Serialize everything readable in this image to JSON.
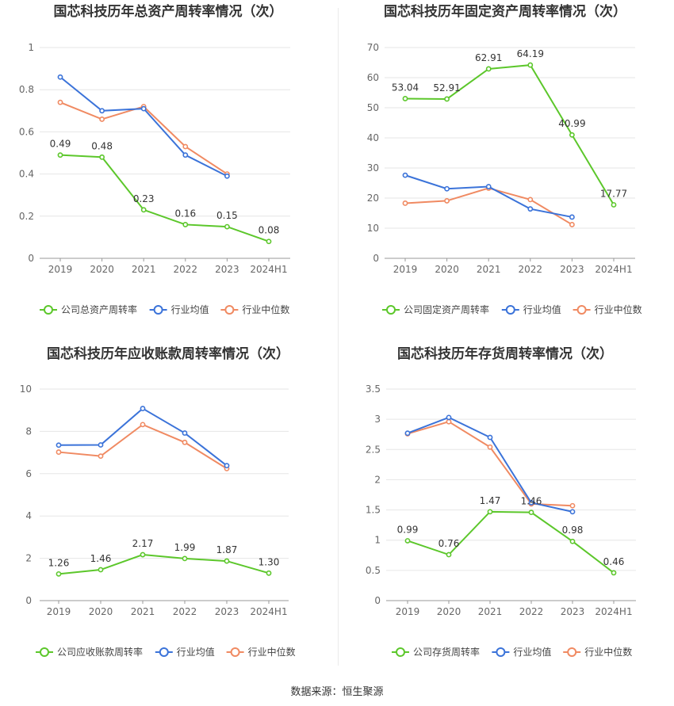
{
  "source": "数据来源：恒生聚源",
  "colors": {
    "company": "#5cc72b",
    "avg": "#3b73d9",
    "median": "#f08a62",
    "grid": "#e6e6e6",
    "axis": "#666666"
  },
  "chart_data": [
    {
      "type": "line",
      "title": "国芯科技历年总资产周转率情况（次）",
      "categories": [
        "2019",
        "2020",
        "2021",
        "2022",
        "2023",
        "2024H1"
      ],
      "ylim": [
        0,
        1
      ],
      "yticks": [
        0,
        0.2,
        0.4,
        0.6,
        0.8,
        1
      ],
      "ytick_labels": [
        "0",
        "0.2",
        "0.4",
        "0.6",
        "0.8",
        "1"
      ],
      "series": [
        {
          "name": "公司总资产周转率",
          "key": "company",
          "values": [
            0.49,
            0.48,
            0.23,
            0.16,
            0.15,
            0.08
          ],
          "labels": [
            "0.49",
            "0.48",
            "0.23",
            "0.16",
            "0.15",
            "0.08"
          ]
        },
        {
          "name": "行业均值",
          "key": "avg",
          "values": [
            0.86,
            0.7,
            0.71,
            0.49,
            0.39,
            null
          ]
        },
        {
          "name": "行业中位数",
          "key": "median",
          "values": [
            0.74,
            0.66,
            0.72,
            0.53,
            0.4,
            null
          ]
        }
      ]
    },
    {
      "type": "line",
      "title": "国芯科技历年固定资产周转率情况（次）",
      "categories": [
        "2019",
        "2020",
        "2021",
        "2022",
        "2023",
        "2024H1"
      ],
      "ylim": [
        0,
        70
      ],
      "yticks": [
        0,
        10,
        20,
        30,
        40,
        50,
        60,
        70
      ],
      "ytick_labels": [
        "0",
        "10",
        "20",
        "30",
        "40",
        "50",
        "60",
        "70"
      ],
      "series": [
        {
          "name": "公司固定资产周转率",
          "key": "company",
          "values": [
            53.04,
            52.91,
            62.91,
            64.19,
            40.99,
            17.77
          ],
          "labels": [
            "53.04",
            "52.91",
            "62.91",
            "64.19",
            "40.99",
            "17.77"
          ]
        },
        {
          "name": "行业均值",
          "key": "avg",
          "values": [
            27.6,
            23.1,
            23.8,
            16.4,
            13.7,
            null
          ]
        },
        {
          "name": "行业中位数",
          "key": "median",
          "values": [
            18.3,
            19.1,
            23.3,
            19.5,
            11.2,
            null
          ]
        }
      ]
    },
    {
      "type": "line",
      "title": "国芯科技历年应收账款周转率情况（次）",
      "categories": [
        "2019",
        "2020",
        "2021",
        "2022",
        "2023",
        "2024H1"
      ],
      "ylim": [
        0,
        10
      ],
      "yticks": [
        0,
        2,
        4,
        6,
        8,
        10
      ],
      "ytick_labels": [
        "0",
        "2",
        "4",
        "6",
        "8",
        "10"
      ],
      "series": [
        {
          "name": "公司应收账款周转率",
          "key": "company",
          "values": [
            1.26,
            1.46,
            2.17,
            1.99,
            1.87,
            1.3
          ],
          "labels": [
            "1.26",
            "1.46",
            "2.17",
            "1.99",
            "1.87",
            "1.30"
          ]
        },
        {
          "name": "行业均值",
          "key": "avg",
          "values": [
            7.35,
            7.36,
            9.08,
            7.92,
            6.38,
            null
          ]
        },
        {
          "name": "行业中位数",
          "key": "median",
          "values": [
            7.02,
            6.83,
            8.32,
            7.48,
            6.24,
            null
          ]
        }
      ]
    },
    {
      "type": "line",
      "title": "国芯科技历年存货周转率情况（次）",
      "categories": [
        "2019",
        "2020",
        "2021",
        "2022",
        "2023",
        "2024H1"
      ],
      "ylim": [
        0,
        3.5
      ],
      "yticks": [
        0,
        0.5,
        1,
        1.5,
        2,
        2.5,
        3,
        3.5
      ],
      "ytick_labels": [
        "0",
        "0.5",
        "1",
        "1.5",
        "2",
        "2.5",
        "3",
        "3.5"
      ],
      "series": [
        {
          "name": "公司存货周转率",
          "key": "company",
          "values": [
            0.99,
            0.76,
            1.47,
            1.46,
            0.98,
            0.46
          ],
          "labels": [
            "0.99",
            "0.76",
            "1.47",
            "1.46",
            "0.98",
            "0.46"
          ]
        },
        {
          "name": "行业均值",
          "key": "avg",
          "values": [
            2.77,
            3.03,
            2.7,
            1.62,
            1.47,
            null
          ]
        },
        {
          "name": "行业中位数",
          "key": "median",
          "values": [
            2.76,
            2.96,
            2.54,
            1.6,
            1.57,
            null
          ]
        }
      ]
    }
  ]
}
